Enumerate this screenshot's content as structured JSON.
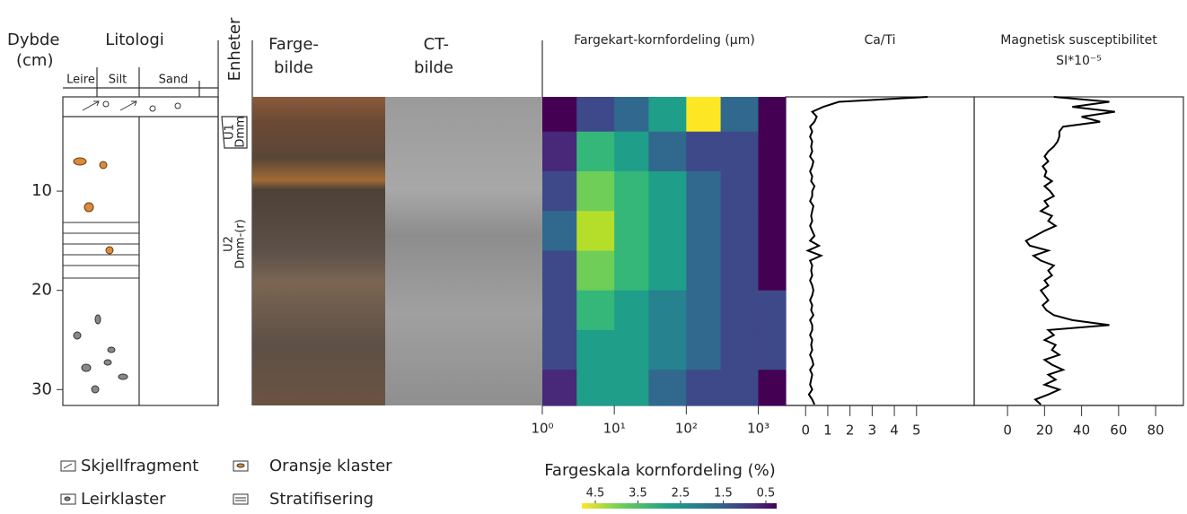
{
  "labels": {
    "depth_title": [
      "Dybde",
      "(cm)"
    ],
    "lithology": "Litologi",
    "grain_classes": [
      "Leire",
      "Silt",
      "Sand"
    ],
    "units_title": "Enheter",
    "color_image": [
      "Farge-",
      "bilde"
    ],
    "ct_image": [
      "CT-",
      "bilde"
    ],
    "unit1": [
      "U1",
      "Dmm"
    ],
    "unit2": [
      "U2",
      "Dmm-(r)"
    ]
  },
  "legend": [
    "Skjellfragment",
    "Oransje klaster",
    "Leirklaster",
    "Stratifisering"
  ],
  "depth_axis": {
    "ylim": [
      0.5,
      31.6
    ],
    "yticks": [
      10,
      20,
      30
    ]
  },
  "chart_data": [
    {
      "type": "heatmap",
      "title": "Fargekart-kornfordeling (µm)",
      "xscale": "log",
      "xlim": [
        1,
        2400
      ],
      "xticks": [
        {
          "value": 1,
          "label": "10⁰"
        },
        {
          "value": 10,
          "label": "10¹"
        },
        {
          "value": 100,
          "label": "10²"
        },
        {
          "value": 1000,
          "label": "10³"
        }
      ],
      "x_edges": [
        1,
        3,
        10,
        30,
        100,
        300,
        1000,
        2400
      ],
      "y_edges": [
        0.5,
        4,
        8,
        12,
        16,
        20,
        24,
        28,
        31.6
      ],
      "values": [
        [
          0.5,
          1.2,
          1.8,
          2.5,
          4.5,
          1.8,
          0.5
        ],
        [
          1.0,
          3.0,
          2.5,
          2.0,
          1.5,
          1.2,
          0.5
        ],
        [
          1.5,
          3.5,
          3.0,
          2.5,
          1.8,
          1.3,
          0.5
        ],
        [
          1.8,
          4.0,
          3.2,
          2.5,
          1.8,
          1.2,
          0.6
        ],
        [
          1.5,
          3.5,
          3.0,
          2.5,
          1.8,
          1.2,
          0.5
        ],
        [
          1.3,
          3.0,
          2.8,
          2.3,
          1.8,
          1.5,
          1.5
        ],
        [
          1.2,
          2.8,
          2.8,
          2.3,
          1.8,
          1.6,
          1.2
        ],
        [
          1.0,
          2.5,
          2.5,
          2.0,
          1.5,
          1.2,
          0.6
        ]
      ],
      "colormap": "viridis",
      "clim": [
        0.5,
        4.5
      ],
      "colorbar": {
        "title": "Fargeskala kornfordeling (%)",
        "ticks": [
          4.5,
          3.5,
          2.5,
          1.5,
          0.5
        ]
      }
    },
    {
      "type": "line",
      "title": "Ca/Ti",
      "xlim": [
        -0.9,
        7.6
      ],
      "xticks": [
        0,
        1,
        2,
        3,
        4,
        5
      ],
      "color": "#000000",
      "y": [
        0.5,
        1,
        1.5,
        2,
        2.5,
        3,
        3.5,
        4,
        4.5,
        5,
        5.5,
        6,
        6.5,
        7,
        7.5,
        8,
        8.5,
        9,
        9.5,
        10,
        10.5,
        11,
        11.5,
        12,
        12.5,
        13,
        13.5,
        14,
        14.5,
        15,
        15.5,
        16,
        16.5,
        17,
        17.5,
        18,
        18.5,
        19,
        19.5,
        20,
        20.5,
        21,
        21.5,
        22,
        22.5,
        23,
        23.5,
        24,
        24.5,
        25,
        25.5,
        26,
        26.5,
        27,
        27.5,
        28,
        28.5,
        29,
        29.5,
        30,
        30.5,
        31,
        31.5
      ],
      "values": [
        5.5,
        1.5,
        0.8,
        0.3,
        0.5,
        0.4,
        0.2,
        0.3,
        0.2,
        0.3,
        0.25,
        0.3,
        0.2,
        0.35,
        0.3,
        0.2,
        0.3,
        0.25,
        0.4,
        0.3,
        0.3,
        0.2,
        0.35,
        0.3,
        0.25,
        0.3,
        0.2,
        0.3,
        0.4,
        0.2,
        0.6,
        0.1,
        0.7,
        0.2,
        0.3,
        0.25,
        0.3,
        0.2,
        0.3,
        0.35,
        0.3,
        0.2,
        0.3,
        0.25,
        0.35,
        0.2,
        0.3,
        0.3,
        0.2,
        0.3,
        0.25,
        0.3,
        0.2,
        0.3,
        0.35,
        0.2,
        0.3,
        0.25,
        0.2,
        0.3,
        0.15,
        0.3,
        0.4
      ]
    },
    {
      "type": "line",
      "title": [
        "Magnetisk susceptibilitet",
        "SI*10⁻⁵"
      ],
      "xlim": [
        -18,
        95
      ],
      "xticks": [
        0,
        20,
        40,
        60,
        80
      ],
      "color": "#000000",
      "y": [
        0.5,
        1,
        1.5,
        2,
        2.5,
        3,
        3.5,
        4,
        4.5,
        5,
        5.5,
        6,
        6.5,
        7,
        7.5,
        8,
        8.5,
        9,
        9.5,
        10,
        10.5,
        11,
        11.5,
        12,
        12.5,
        13,
        13.5,
        14,
        14.5,
        15,
        15.5,
        16,
        16.5,
        17,
        17.5,
        18,
        18.5,
        19,
        19.5,
        20,
        20.5,
        21,
        21.5,
        22,
        22.5,
        23,
        23.5,
        24,
        24.5,
        25,
        25.5,
        26,
        26.5,
        27,
        27.5,
        28,
        28.5,
        29,
        29.5,
        30,
        30.5,
        31,
        31.5
      ],
      "values": [
        25,
        55,
        35,
        58,
        40,
        50,
        30,
        28,
        28,
        27,
        25,
        22,
        20,
        22,
        19,
        21,
        20,
        24,
        20,
        23,
        25,
        20,
        22,
        18,
        24,
        22,
        26,
        20,
        15,
        10,
        12,
        22,
        14,
        18,
        25,
        22,
        24,
        20,
        22,
        18,
        20,
        22,
        19,
        21,
        25,
        35,
        55,
        22,
        25,
        20,
        26,
        24,
        28,
        20,
        24,
        30,
        22,
        26,
        20,
        28,
        22,
        15,
        18
      ]
    }
  ]
}
